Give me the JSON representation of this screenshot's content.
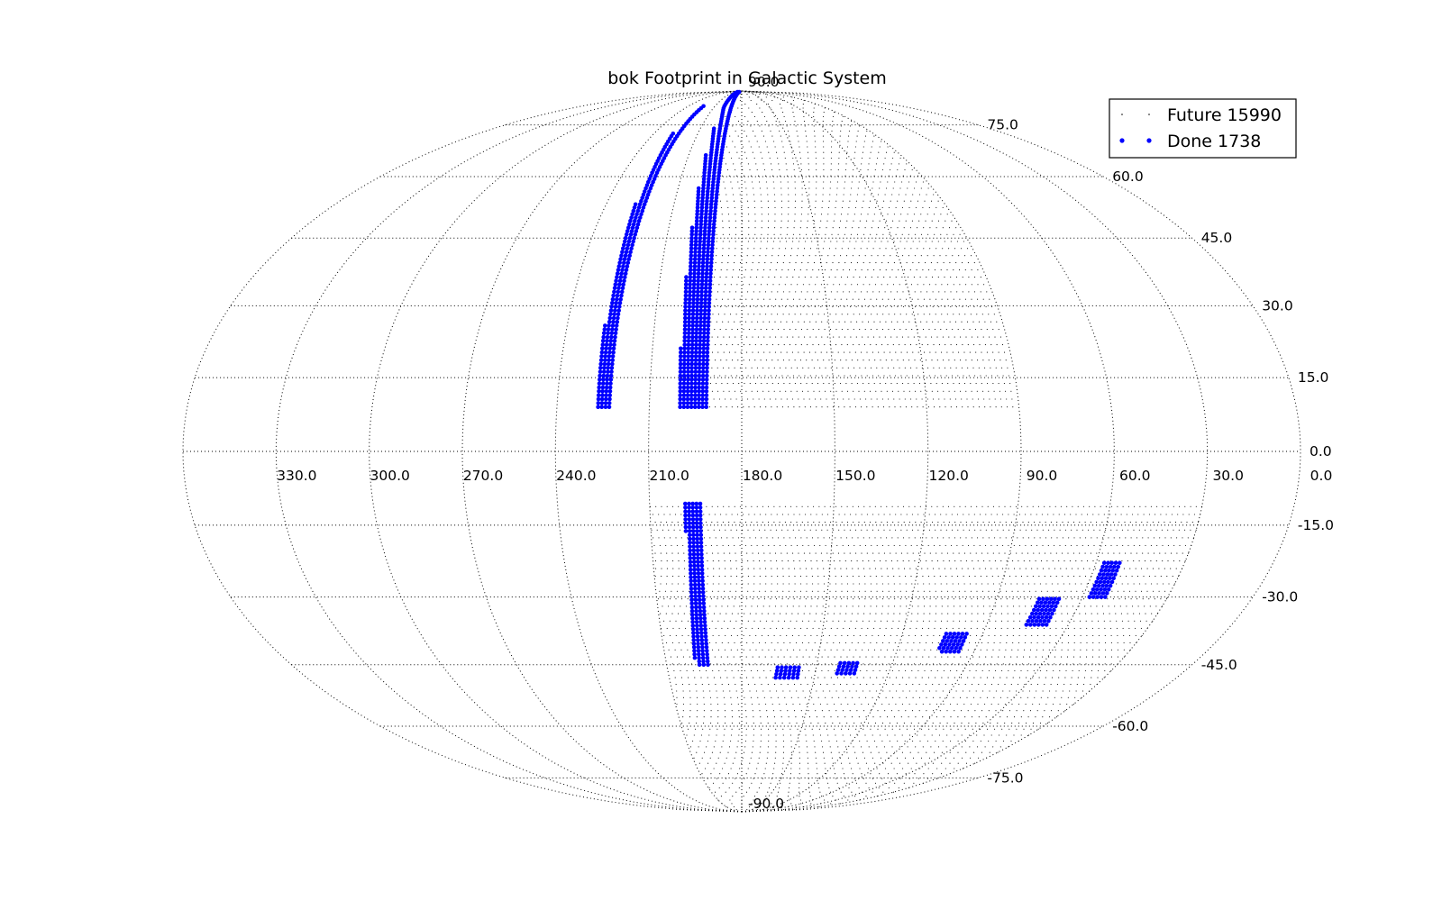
{
  "chart_data": {
    "type": "scatter",
    "projection": "mollweide",
    "title": "bok  Footprint in Galactic System",
    "legend": {
      "placement": "top-right",
      "entries": [
        {
          "label": "Future 15990",
          "color": "#000000",
          "marker": "small-point"
        },
        {
          "label": "Done 1738",
          "color": "#0000ff",
          "marker": "dot"
        }
      ]
    },
    "grid": true,
    "lon_ticks": [
      "330.0",
      "300.0",
      "270.0",
      "240.0",
      "210.0",
      "180.0",
      "150.0",
      "120.0",
      "90.0",
      "60.0",
      "30.0",
      "0.0"
    ],
    "lat_ticks": [
      "90.0",
      "75.0",
      "60.0",
      "45.0",
      "30.0",
      "15.0",
      "0.0",
      "-15.0",
      "-30.0",
      "-45.0",
      "-60.0",
      "-75.0",
      "-90.0"
    ],
    "lon_range": [
      360,
      0
    ],
    "lat_range": [
      -90,
      90
    ],
    "series": [
      {
        "name": "Future 15990",
        "color": "#000000",
        "regions": [
          {
            "lat_range": [
              9,
              89
            ],
            "lon_range": [
              195,
              92
            ]
          },
          {
            "lat_range": [
              -88,
              -10
            ],
            "lon_range": [
              210,
              30
            ]
          }
        ]
      },
      {
        "name": "Done 1738",
        "color": "#0000ff",
        "bands": [
          {
            "lat_range": [
              9,
              82
            ],
            "lon_center": 225,
            "lon_width": 4
          },
          {
            "lat_range": [
              9,
              89
            ],
            "lon_center": 196,
            "lon_width": 9
          },
          {
            "lat_range": [
              -45,
              -10
            ],
            "lon_center": 196,
            "lon_width": 5
          },
          {
            "lat_range": [
              -48,
              -45
            ],
            "lon_center": 162,
            "lon_width": 10
          },
          {
            "lat_range": [
              -47,
              -44
            ],
            "lon_center": 138,
            "lon_width": 8
          },
          {
            "lat_range": [
              -42,
              -38
            ],
            "lon_center": 100,
            "lon_width": 8
          },
          {
            "lat_range": [
              -36,
              -30
            ],
            "lon_center": 72,
            "lon_width": 8
          },
          {
            "lat_range": [
              -30,
              -22
            ],
            "lon_center": 55,
            "lon_width": 6
          }
        ]
      }
    ]
  }
}
